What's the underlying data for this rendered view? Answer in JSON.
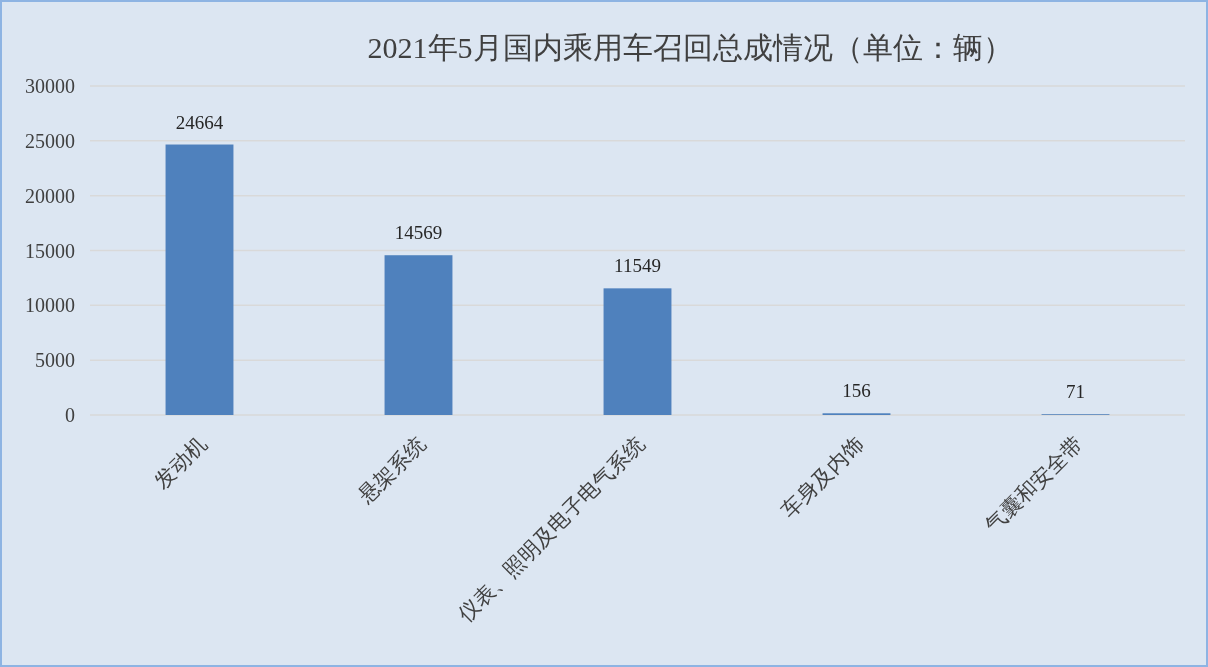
{
  "chart_data": {
    "type": "bar",
    "title": "2021年5月国内乘用车召回总成情况（单位：辆）",
    "categories": [
      "发动机",
      "悬架系统",
      "仪表、照明及电子电气系统",
      "车身及内饰",
      "气囊和安全带"
    ],
    "values": [
      24664,
      14569,
      11549,
      156,
      71
    ],
    "color": "#4f81bd",
    "ylim": [
      0,
      30000
    ],
    "yticks": [
      0,
      5000,
      10000,
      15000,
      20000,
      25000,
      30000
    ],
    "grid": "y",
    "data_labels": true
  }
}
